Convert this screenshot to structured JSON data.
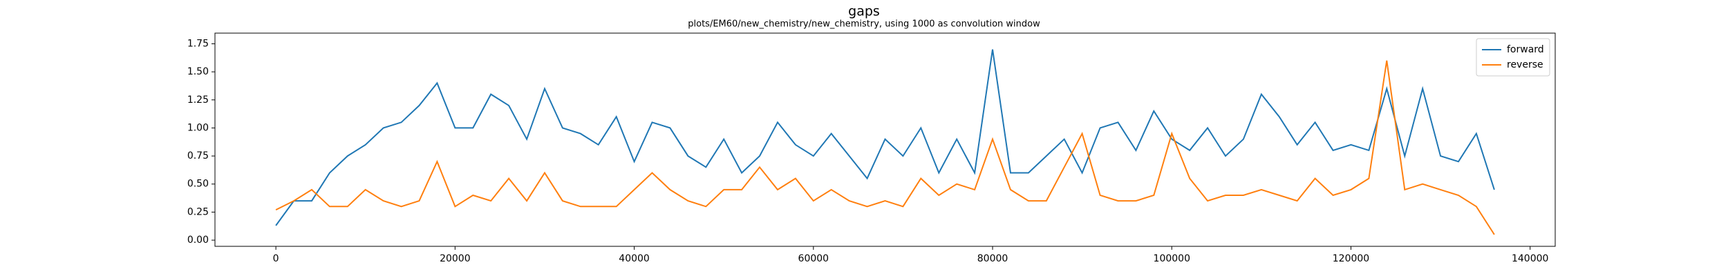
{
  "chart_data": {
    "type": "line",
    "title": "gaps",
    "subtitle": "plots/EM60/new_chemistry/new_chemistry, using 1000 as convolution window",
    "x": [
      0,
      2000,
      4000,
      6000,
      8000,
      10000,
      12000,
      14000,
      16000,
      18000,
      20000,
      22000,
      24000,
      26000,
      28000,
      30000,
      32000,
      34000,
      36000,
      38000,
      40000,
      42000,
      44000,
      46000,
      48000,
      50000,
      52000,
      54000,
      56000,
      58000,
      60000,
      62000,
      64000,
      66000,
      68000,
      70000,
      72000,
      74000,
      76000,
      78000,
      80000,
      82000,
      84000,
      86000,
      88000,
      90000,
      92000,
      94000,
      96000,
      98000,
      100000,
      102000,
      104000,
      106000,
      108000,
      110000,
      112000,
      114000,
      116000,
      118000,
      120000,
      122000,
      124000,
      126000,
      128000,
      130000,
      132000,
      134000,
      136000
    ],
    "series": [
      {
        "name": "forward",
        "color": "#1f77b4",
        "values": [
          0.13,
          0.35,
          0.35,
          0.6,
          0.75,
          0.85,
          1.0,
          1.05,
          1.2,
          1.4,
          1.0,
          1.0,
          1.3,
          1.2,
          0.9,
          1.35,
          1.0,
          0.95,
          0.85,
          1.1,
          0.7,
          1.05,
          1.0,
          0.75,
          0.65,
          0.9,
          0.6,
          0.75,
          1.05,
          0.85,
          0.75,
          0.95,
          0.75,
          0.55,
          0.9,
          0.75,
          1.0,
          0.6,
          0.9,
          0.6,
          1.7,
          0.6,
          0.6,
          0.75,
          0.9,
          0.6,
          1.0,
          1.05,
          0.8,
          1.15,
          0.9,
          0.8,
          1.0,
          0.75,
          0.9,
          1.3,
          1.1,
          0.85,
          1.05,
          0.8,
          0.85,
          0.8,
          1.35,
          0.75,
          1.35,
          0.75,
          0.7,
          0.95,
          0.45
        ]
      },
      {
        "name": "reverse",
        "color": "#ff7f0e",
        "values": [
          0.27,
          0.35,
          0.45,
          0.3,
          0.3,
          0.45,
          0.35,
          0.3,
          0.35,
          0.7,
          0.3,
          0.4,
          0.35,
          0.55,
          0.35,
          0.6,
          0.35,
          0.3,
          0.3,
          0.3,
          0.45,
          0.6,
          0.45,
          0.35,
          0.3,
          0.45,
          0.45,
          0.65,
          0.45,
          0.55,
          0.35,
          0.45,
          0.35,
          0.3,
          0.35,
          0.3,
          0.55,
          0.4,
          0.5,
          0.45,
          0.9,
          0.45,
          0.35,
          0.35,
          0.65,
          0.95,
          0.4,
          0.35,
          0.35,
          0.4,
          0.95,
          0.55,
          0.35,
          0.4,
          0.4,
          0.45,
          0.4,
          0.35,
          0.55,
          0.4,
          0.45,
          0.55,
          1.6,
          0.45,
          0.5,
          0.45,
          0.4,
          0.3,
          0.05
        ]
      }
    ],
    "xlim": [
      -6800,
      142800
    ],
    "xticks": [
      0,
      20000,
      40000,
      60000,
      80000,
      100000,
      120000,
      140000
    ],
    "ylim": [
      -0.055,
      1.845
    ],
    "yticks": [
      {
        "value": 0,
        "label": "0.00"
      },
      {
        "value": 0.25,
        "label": "0.25"
      },
      {
        "value": 0.5,
        "label": "0.50"
      },
      {
        "value": 0.75,
        "label": "0.75"
      },
      {
        "value": 1.0,
        "label": "1.00"
      },
      {
        "value": 1.25,
        "label": "1.25"
      },
      {
        "value": 1.5,
        "label": "1.50"
      },
      {
        "value": 1.75,
        "label": "1.75"
      }
    ],
    "legend": "upper right"
  }
}
